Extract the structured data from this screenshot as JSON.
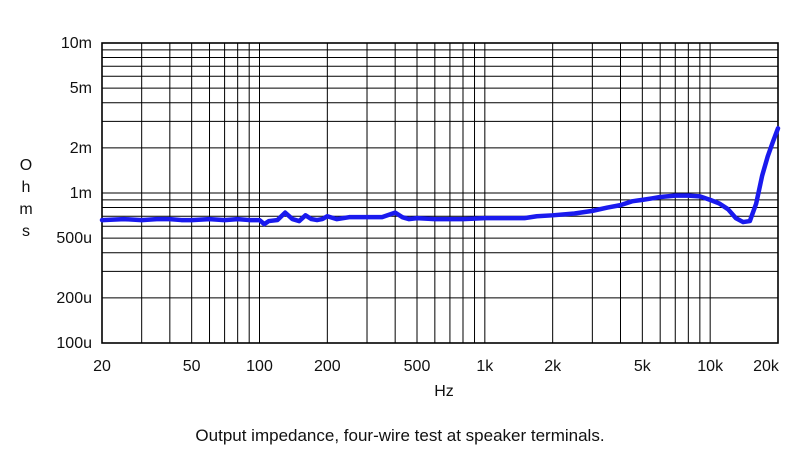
{
  "chart_data": {
    "type": "line",
    "xlabel": "Hz",
    "ylabel": "Ohms",
    "caption": "Output impedance, four-wire test at speaker terminals.",
    "x_scale": "log",
    "y_scale": "log",
    "xlim": [
      20,
      20000
    ],
    "ylim": [
      0.0001,
      0.01
    ],
    "grid": true,
    "line_color": "#1a1aee",
    "x_ticks": [
      {
        "value": 20,
        "label": "20"
      },
      {
        "value": 50,
        "label": "50"
      },
      {
        "value": 100,
        "label": "100"
      },
      {
        "value": 200,
        "label": "200"
      },
      {
        "value": 500,
        "label": "500"
      },
      {
        "value": 1000,
        "label": "1k"
      },
      {
        "value": 2000,
        "label": "2k"
      },
      {
        "value": 5000,
        "label": "5k"
      },
      {
        "value": 10000,
        "label": "10k"
      },
      {
        "value": 20000,
        "label": "20k"
      }
    ],
    "y_ticks": [
      {
        "value": 0.0001,
        "label": "100u"
      },
      {
        "value": 0.0002,
        "label": "200u"
      },
      {
        "value": 0.0005,
        "label": "500u"
      },
      {
        "value": 0.001,
        "label": "1m"
      },
      {
        "value": 0.002,
        "label": "2m"
      },
      {
        "value": 0.005,
        "label": "5m"
      },
      {
        "value": 0.01,
        "label": "10m"
      }
    ],
    "series": [
      {
        "x": [
          20,
          25,
          30,
          35,
          40,
          45,
          50,
          60,
          70,
          80,
          90,
          100,
          105,
          110,
          120,
          130,
          140,
          150,
          160,
          170,
          180,
          190,
          200,
          220,
          250,
          280,
          300,
          350,
          400,
          430,
          460,
          500,
          600,
          700,
          800,
          1000,
          1200,
          1500,
          1700,
          2000,
          2500,
          3000,
          3500,
          4000,
          4500,
          5000,
          5500,
          6000,
          7000,
          8000,
          9000,
          10000,
          11000,
          12000,
          13000,
          14000,
          15000,
          16000,
          17000,
          18000,
          19000,
          20000
        ],
        "y": [
          0.00066,
          0.00067,
          0.00066,
          0.00067,
          0.00067,
          0.00066,
          0.00066,
          0.00067,
          0.00066,
          0.00067,
          0.00066,
          0.00066,
          0.00062,
          0.00065,
          0.00066,
          0.00074,
          0.00067,
          0.00065,
          0.00071,
          0.00067,
          0.00066,
          0.00067,
          0.0007,
          0.00067,
          0.00069,
          0.00069,
          0.00069,
          0.00069,
          0.00074,
          0.00069,
          0.00067,
          0.00068,
          0.00067,
          0.00067,
          0.00067,
          0.00068,
          0.00068,
          0.00068,
          0.0007,
          0.00071,
          0.00073,
          0.00076,
          0.0008,
          0.00083,
          0.00088,
          0.0009,
          0.00092,
          0.00094,
          0.00096,
          0.00096,
          0.00095,
          0.0009,
          0.00085,
          0.00078,
          0.00068,
          0.00064,
          0.00065,
          0.00085,
          0.0013,
          0.00175,
          0.0022,
          0.0027
        ]
      }
    ]
  }
}
